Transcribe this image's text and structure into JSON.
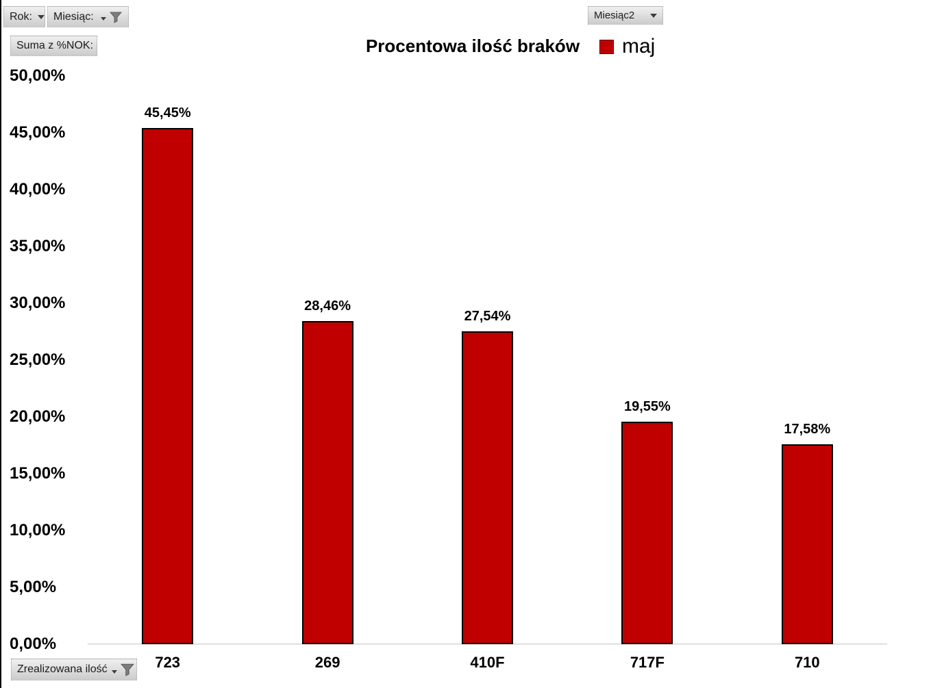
{
  "filters": {
    "rok": {
      "label": "Rok:"
    },
    "miesiac": {
      "label": "Miesiąc:"
    },
    "miesiac2": {
      "label": "Miesiąc2"
    },
    "suma_nok": {
      "label": "Suma z %NOK:"
    },
    "zrealizowana": {
      "label": "Zrealizowana ilość"
    }
  },
  "chart_data": {
    "type": "bar",
    "title": "Procentowa ilość braków",
    "legend_position": "top-right",
    "grid": false,
    "series": [
      {
        "name": "maj",
        "color": "#c00000",
        "border_color": "#000000",
        "values": [
          45.45,
          28.46,
          27.54,
          19.55,
          17.58
        ],
        "data_labels": [
          "45,45%",
          "28,46%",
          "27,54%",
          "19,55%",
          "17,58%"
        ]
      }
    ],
    "categories": [
      "723",
      "269",
      "410F",
      "717F",
      "710"
    ],
    "xlabel": "",
    "ylabel": "",
    "ylim": [
      0,
      50
    ],
    "y_ticks": [
      0,
      5,
      10,
      15,
      20,
      25,
      30,
      35,
      40,
      45,
      50
    ],
    "y_tick_labels": [
      "0,00%",
      "5,00%",
      "10,00%",
      "15,00%",
      "20,00%",
      "25,00%",
      "30,00%",
      "35,00%",
      "40,00%",
      "45,00%",
      "50,00%"
    ]
  }
}
